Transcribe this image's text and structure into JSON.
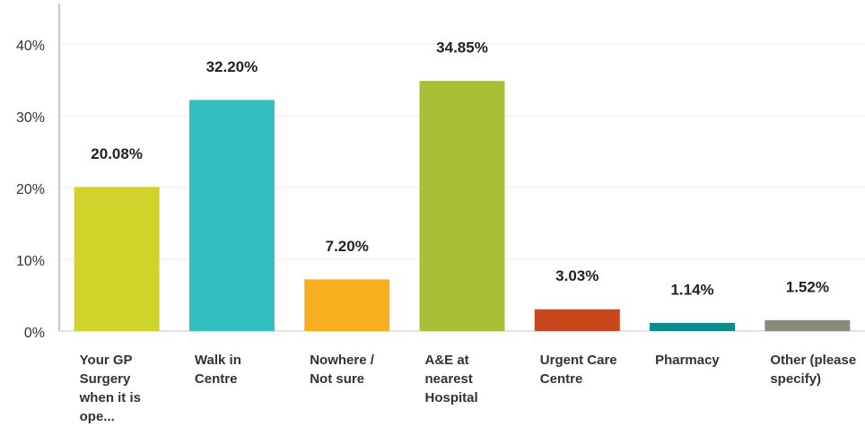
{
  "chart_data": {
    "type": "bar",
    "categories": [
      "Your GP Surgery when it is ope...",
      "Walk in Centre",
      "Nowhere / Not sure",
      "A&E at nearest Hospital",
      "Urgent Care Centre",
      "Pharmacy",
      "Other (please specify)"
    ],
    "values": [
      20.08,
      32.2,
      7.2,
      34.85,
      3.03,
      1.14,
      1.52
    ],
    "value_labels": [
      "20.08%",
      "32.20%",
      "7.20%",
      "34.85%",
      "3.03%",
      "1.14%",
      "1.52%"
    ],
    "colors": [
      "#d0d42a",
      "#33bfbf",
      "#f7ae1f",
      "#a9bf38",
      "#c8461b",
      "#0f8a8a",
      "#8a8a79"
    ],
    "ylim": [
      0,
      45
    ],
    "yticks": [
      {
        "value": 0,
        "label": "0%"
      },
      {
        "value": 10,
        "label": "10%"
      },
      {
        "value": 20,
        "label": "20%"
      },
      {
        "value": 30,
        "label": "30%"
      },
      {
        "value": 40,
        "label": "40%"
      }
    ],
    "grid": true
  }
}
